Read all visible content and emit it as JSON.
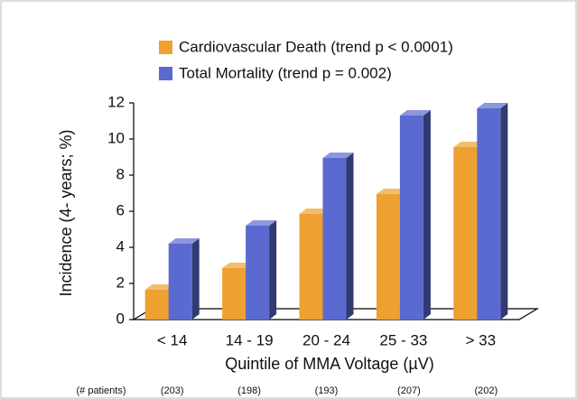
{
  "chart_data": {
    "type": "bar3d",
    "categories": [
      "< 14",
      "14 - 19",
      "20 - 24",
      "25 - 33",
      "> 33"
    ],
    "series": [
      {
        "name": "Cardiovascular Death (trend p < 0.0001)",
        "color": "#eea030",
        "values": [
          1.65,
          2.85,
          5.85,
          6.95,
          9.55
        ]
      },
      {
        "name": "Total Mortality (trend p = 0.002)",
        "color": "#5a6ad0",
        "values": [
          4.2,
          5.2,
          8.95,
          11.3,
          11.7
        ]
      }
    ],
    "ylim": [
      0,
      12
    ],
    "yticks": [
      0,
      2,
      4,
      6,
      8,
      10,
      12
    ],
    "y_label": "Incidence (4- years; %)",
    "x_label": "Quintile of MMA Voltage (µV)",
    "patients_label": "(# patients)",
    "patients": [
      "(203)",
      "(198)",
      "(193)",
      "(207)",
      "(202)"
    ]
  }
}
